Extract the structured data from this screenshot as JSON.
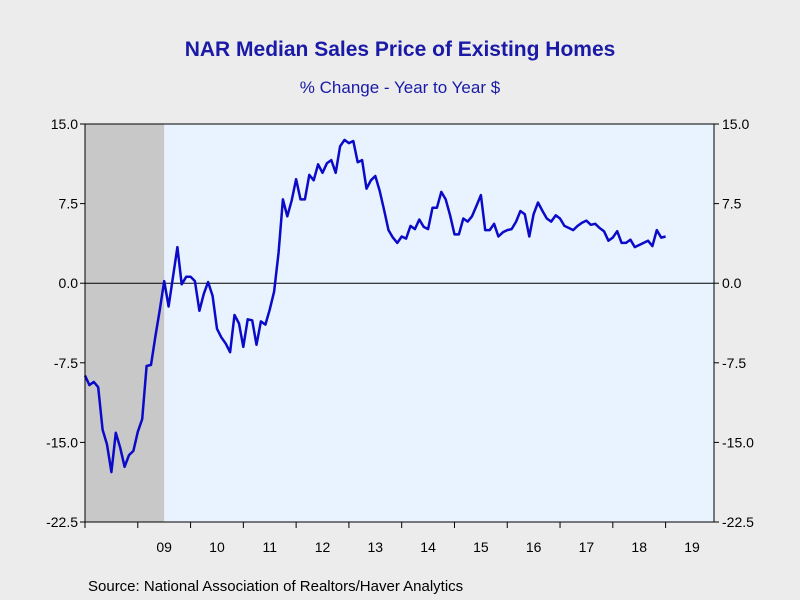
{
  "chart_data": {
    "type": "line",
    "title": "NAR Median Sales Price of Existing Homes",
    "subtitle": "% Change - Year to Year     $",
    "source": "Source:  National Association of Realtors/Haver Analytics",
    "ylim": [
      -22.5,
      15.0
    ],
    "y_ticks": [
      "15.0",
      "7.5",
      "0.0",
      "-7.5",
      "-15.0",
      "-22.5"
    ],
    "y_tick_values": [
      15.0,
      7.5,
      0.0,
      -7.5,
      -15.0,
      -22.5
    ],
    "x_labels": [
      "09",
      "10",
      "11",
      "12",
      "13",
      "14",
      "15",
      "16",
      "17",
      "18",
      "19"
    ],
    "x_label_values": [
      2009.5,
      2010.5,
      2011.5,
      2012.5,
      2013.5,
      2014.5,
      2015.5,
      2016.5,
      2017.5,
      2018.5,
      2019.5
    ],
    "xlim": [
      2008.0,
      2019.917
    ],
    "grid": false,
    "recession_band": [
      2008.0,
      2009.5
    ],
    "colors": {
      "line": "#0a0ac8",
      "plot_bg": "#e8f3ff",
      "recession": "#c8c8c8",
      "text": "#1a1aa6"
    },
    "series": [
      {
        "values": [
          [
            2008.0,
            -8.7
          ],
          [
            2008.083,
            -9.6
          ],
          [
            2008.167,
            -9.3
          ],
          [
            2008.25,
            -9.8
          ],
          [
            2008.333,
            -13.8
          ],
          [
            2008.417,
            -15.2
          ],
          [
            2008.5,
            -17.8
          ],
          [
            2008.583,
            -14.1
          ],
          [
            2008.667,
            -15.5
          ],
          [
            2008.75,
            -17.3
          ],
          [
            2008.833,
            -16.2
          ],
          [
            2008.917,
            -15.8
          ],
          [
            2009.0,
            -14.0
          ],
          [
            2009.083,
            -12.8
          ],
          [
            2009.167,
            -7.8
          ],
          [
            2009.25,
            -7.7
          ],
          [
            2009.333,
            -5.0
          ],
          [
            2009.417,
            -2.5
          ],
          [
            2009.5,
            0.2
          ],
          [
            2009.583,
            -2.2
          ],
          [
            2009.667,
            0.6
          ],
          [
            2009.75,
            3.4
          ],
          [
            2009.833,
            -0.1
          ],
          [
            2009.917,
            0.6
          ],
          [
            2010.0,
            0.6
          ],
          [
            2010.083,
            0.2
          ],
          [
            2010.167,
            -2.6
          ],
          [
            2010.25,
            -1.0
          ],
          [
            2010.333,
            0.1
          ],
          [
            2010.417,
            -1.2
          ],
          [
            2010.5,
            -4.3
          ],
          [
            2010.583,
            -5.1
          ],
          [
            2010.667,
            -5.7
          ],
          [
            2010.75,
            -6.5
          ],
          [
            2010.833,
            -3.0
          ],
          [
            2010.917,
            -3.8
          ],
          [
            2011.0,
            -6.0
          ],
          [
            2011.083,
            -3.4
          ],
          [
            2011.167,
            -3.5
          ],
          [
            2011.25,
            -5.8
          ],
          [
            2011.333,
            -3.6
          ],
          [
            2011.417,
            -3.9
          ],
          [
            2011.5,
            -2.5
          ],
          [
            2011.583,
            -0.8
          ],
          [
            2011.667,
            2.9
          ],
          [
            2011.75,
            7.9
          ],
          [
            2011.833,
            6.3
          ],
          [
            2011.917,
            7.8
          ],
          [
            2012.0,
            9.8
          ],
          [
            2012.083,
            7.9
          ],
          [
            2012.167,
            7.9
          ],
          [
            2012.25,
            10.2
          ],
          [
            2012.333,
            9.7
          ],
          [
            2012.417,
            11.2
          ],
          [
            2012.5,
            10.4
          ],
          [
            2012.583,
            11.3
          ],
          [
            2012.667,
            11.6
          ],
          [
            2012.75,
            10.4
          ],
          [
            2012.833,
            12.9
          ],
          [
            2012.917,
            13.5
          ],
          [
            2013.0,
            13.2
          ],
          [
            2013.083,
            13.4
          ],
          [
            2013.167,
            11.4
          ],
          [
            2013.25,
            11.6
          ],
          [
            2013.333,
            8.9
          ],
          [
            2013.417,
            9.7
          ],
          [
            2013.5,
            10.1
          ],
          [
            2013.583,
            8.7
          ],
          [
            2013.667,
            6.9
          ],
          [
            2013.75,
            5.0
          ],
          [
            2013.833,
            4.3
          ],
          [
            2013.917,
            3.8
          ],
          [
            2014.0,
            4.4
          ],
          [
            2014.083,
            4.2
          ],
          [
            2014.167,
            5.4
          ],
          [
            2014.25,
            5.1
          ],
          [
            2014.333,
            6.0
          ],
          [
            2014.417,
            5.3
          ],
          [
            2014.5,
            5.1
          ],
          [
            2014.583,
            7.1
          ],
          [
            2014.667,
            7.1
          ],
          [
            2014.75,
            8.6
          ],
          [
            2014.833,
            7.9
          ],
          [
            2014.917,
            6.4
          ],
          [
            2015.0,
            4.6
          ],
          [
            2015.083,
            4.6
          ],
          [
            2015.167,
            6.1
          ],
          [
            2015.25,
            5.8
          ],
          [
            2015.333,
            6.3
          ],
          [
            2015.417,
            7.3
          ],
          [
            2015.5,
            8.3
          ],
          [
            2015.583,
            5.0
          ],
          [
            2015.667,
            5.0
          ],
          [
            2015.75,
            5.6
          ],
          [
            2015.833,
            4.4
          ],
          [
            2015.917,
            4.8
          ],
          [
            2016.0,
            5.0
          ],
          [
            2016.083,
            5.1
          ],
          [
            2016.167,
            5.8
          ],
          [
            2016.25,
            6.8
          ],
          [
            2016.333,
            6.5
          ],
          [
            2016.417,
            4.4
          ],
          [
            2016.5,
            6.5
          ],
          [
            2016.583,
            7.6
          ],
          [
            2016.667,
            6.8
          ],
          [
            2016.75,
            6.1
          ],
          [
            2016.833,
            5.8
          ],
          [
            2016.917,
            6.4
          ],
          [
            2017.0,
            6.1
          ],
          [
            2017.083,
            5.4
          ],
          [
            2017.167,
            5.2
          ],
          [
            2017.25,
            5.0
          ],
          [
            2017.333,
            5.4
          ],
          [
            2017.417,
            5.7
          ],
          [
            2017.5,
            5.9
          ],
          [
            2017.583,
            5.5
          ],
          [
            2017.667,
            5.6
          ],
          [
            2017.75,
            5.2
          ],
          [
            2017.833,
            4.9
          ],
          [
            2017.917,
            4.0
          ],
          [
            2018.0,
            4.3
          ],
          [
            2018.083,
            4.9
          ],
          [
            2018.167,
            3.8
          ],
          [
            2018.25,
            3.8
          ],
          [
            2018.333,
            4.1
          ],
          [
            2018.417,
            3.4
          ],
          [
            2018.5,
            3.6
          ],
          [
            2018.583,
            3.8
          ],
          [
            2018.667,
            4.0
          ],
          [
            2018.75,
            3.5
          ],
          [
            2018.833,
            5.0
          ],
          [
            2018.917,
            4.3
          ],
          [
            2019.0,
            4.4
          ]
        ]
      }
    ]
  }
}
